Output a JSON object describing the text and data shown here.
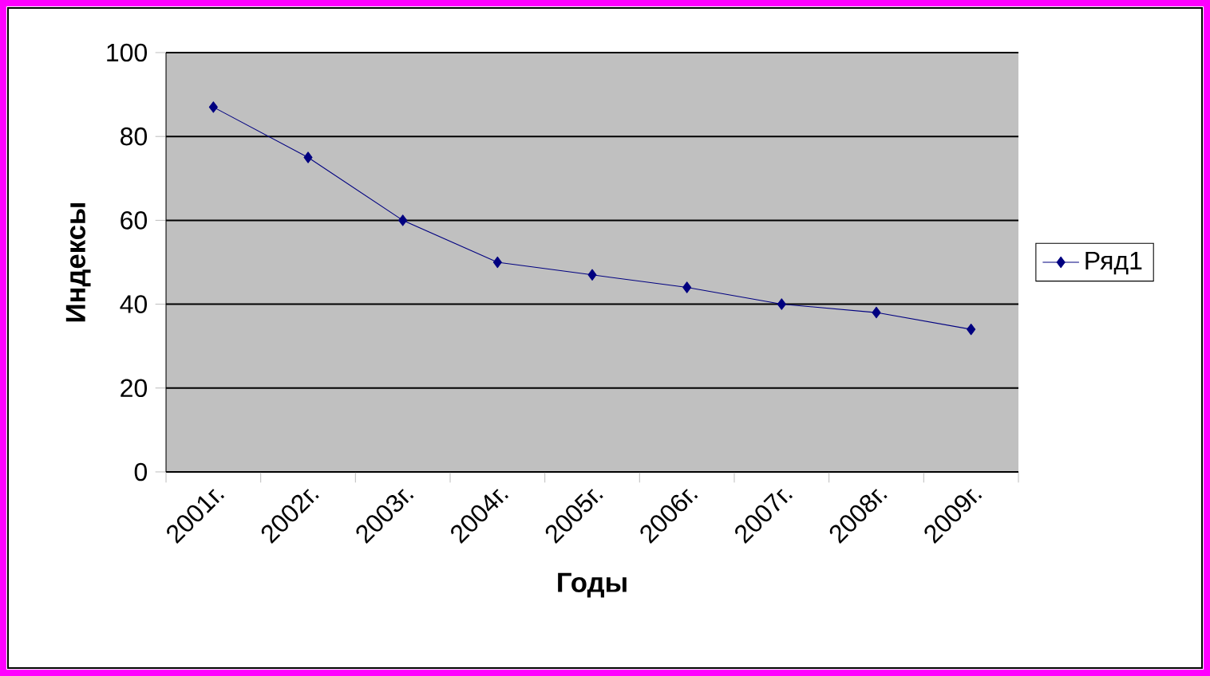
{
  "chart_data": {
    "type": "line",
    "xlabel": "Годы",
    "ylabel": "Индексы",
    "categories": [
      "2001г.",
      "2002г.",
      "2003г.",
      "2004г.",
      "2005г.",
      "2006г.",
      "2007г.",
      "2008г.",
      "2009г."
    ],
    "series": [
      {
        "name": "Ряд1",
        "color": "#000080",
        "values": [
          87,
          75,
          60,
          50,
          47,
          44,
          40,
          38,
          34
        ]
      }
    ],
    "ylim": [
      0,
      100
    ],
    "yticks": [
      0,
      20,
      40,
      60,
      80,
      100
    ],
    "grid": "y",
    "legend": "right",
    "marker": "diamond",
    "line_style": "solid"
  }
}
